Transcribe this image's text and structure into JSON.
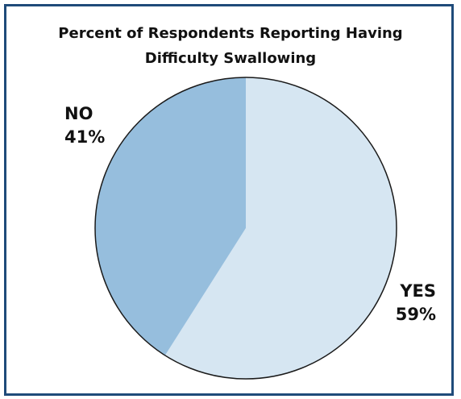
{
  "chart_data": {
    "type": "pie",
    "title": "Percent of Respondents Reporting Having Difficulty Swallowing",
    "title_lines": [
      "Percent of Respondents Reporting Having",
      "Difficulty Swallowing"
    ],
    "slices": [
      {
        "label": "YES",
        "value": 59,
        "value_label": "59%",
        "color": "#d6e6f2"
      },
      {
        "label": "NO",
        "value": 41,
        "value_label": "41%",
        "color": "#96bedd"
      }
    ]
  },
  "colors": {
    "frame": "#1f4b7a",
    "outline": "#1a1a1a"
  }
}
